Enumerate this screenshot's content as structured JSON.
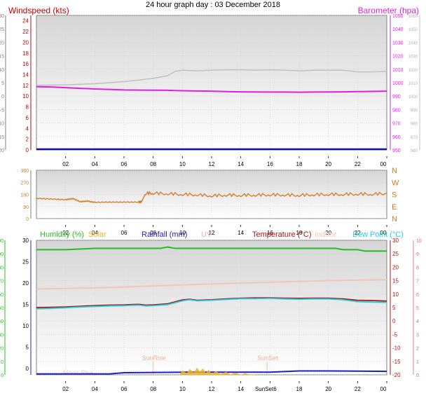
{
  "title": "24 hour graph day : 03 December 2018",
  "x_ticks": [
    "02",
    "04",
    "06",
    "08",
    "10",
    "12",
    "14",
    "16",
    "18",
    "20",
    "22",
    "00"
  ],
  "colors": {
    "wind_label": "#c00000",
    "baro": "#e020e0",
    "gust": "#c0c0c0",
    "dir": "#d07c20",
    "humidity": "#20c020",
    "solar": "#f0b020",
    "rain": "#2020c0",
    "uv": "#f0b0b0",
    "temp": "#b01010",
    "indoor": "#f0c8b8",
    "dew": "#20d0e0",
    "grid": "#d0d0d0",
    "bg_top": "#d8d8d8",
    "bg_bottom": "#ffffff"
  },
  "chart_data": [
    {
      "id": "wind-baro",
      "type": "line",
      "title": "",
      "left_label": "Windspeed (kts)",
      "right_label": "Barometer (hpa)",
      "left_ticks": [
        "24",
        "22",
        "20",
        "18",
        "16",
        "14",
        "12",
        "10",
        "8",
        "6",
        "4",
        "2",
        "0"
      ],
      "far_left_ticks": [
        "30",
        "25",
        "20",
        "15",
        "10",
        "5",
        "0",
        "-5",
        "-10",
        "-15",
        "-20"
      ],
      "right_ticks": [
        "1050",
        "1040",
        "1030",
        "1020",
        "1010",
        "1000",
        "990",
        "980",
        "970",
        "960",
        "950"
      ],
      "far_right_ticks": [
        "1060",
        "1050",
        "1040",
        "1030",
        "1020",
        "1010",
        "1000",
        "990",
        "980",
        "970",
        "960"
      ],
      "ylim_left": [
        0,
        25
      ],
      "ylim_baro": [
        950,
        1050
      ],
      "series": [
        {
          "key": "gust",
          "x": [
            0,
            2,
            4,
            5,
            6,
            7,
            8,
            9,
            9.5,
            10,
            11,
            12,
            13,
            14,
            15,
            16,
            17,
            18,
            19,
            20,
            21,
            22,
            23,
            24
          ],
          "y": [
            12,
            12.1,
            12.3,
            12.5,
            12.7,
            13,
            13.3,
            13.8,
            14.6,
            14.8,
            14.7,
            14.8,
            14.9,
            14.9,
            14.8,
            14.9,
            14.8,
            14.7,
            14.8,
            14.8,
            14.8,
            14.5,
            14.5,
            14.6
          ]
        },
        {
          "key": "baro",
          "x": [
            0,
            1,
            2,
            3,
            4,
            5,
            6,
            7,
            8,
            9,
            10,
            11,
            12,
            13,
            14,
            15,
            16,
            17,
            18,
            19,
            20,
            21,
            22,
            23,
            24
          ],
          "y": [
            997,
            996.8,
            996.3,
            995.8,
            995.3,
            995,
            994.6,
            994.5,
            994.4,
            994.3,
            994,
            993.8,
            993.7,
            993.4,
            993.2,
            993.1,
            993,
            993,
            992.9,
            993,
            993.1,
            993.2,
            993.4,
            993.5,
            993.7
          ]
        },
        {
          "key": "wind",
          "x": [
            0,
            24
          ],
          "y": [
            0,
            0
          ]
        }
      ]
    },
    {
      "id": "direction",
      "type": "line",
      "title": "",
      "left_ticks": [
        "360",
        "270",
        "180",
        "90",
        "0"
      ],
      "right_ticks": [
        "N",
        "W",
        "S",
        "E",
        "N"
      ],
      "ylim": [
        0,
        360
      ],
      "series": [
        {
          "key": "dir",
          "x": [
            0,
            1,
            2,
            2.5,
            3,
            3.5,
            4,
            5,
            6,
            7,
            7.2,
            7.5,
            8,
            9,
            10,
            11,
            12,
            13,
            14,
            15,
            16,
            17,
            18,
            19,
            20,
            21,
            22,
            23,
            24
          ],
          "y": [
            150,
            145,
            140,
            148,
            125,
            130,
            120,
            122,
            122,
            122,
            125,
            190,
            192,
            188,
            183,
            180,
            172,
            178,
            176,
            178,
            180,
            179,
            176,
            181,
            183,
            183,
            186,
            184,
            190
          ]
        }
      ]
    },
    {
      "id": "temp-hum",
      "type": "line",
      "title": "",
      "labels": {
        "humidity": "Humidity (%)",
        "solar": "Solar",
        "rain": "Rainfall (mm)",
        "uv": "UV",
        "temp": "Temperature (°C)",
        "indoor": "Indoor",
        "dew": "Dew Point (°C)"
      },
      "humidity_ticks": [
        "100",
        "90",
        "80",
        "70",
        "60",
        "50",
        "40",
        "30",
        "20",
        "10",
        "0"
      ],
      "rain_ticks": [
        "30",
        "25",
        "20",
        "15",
        "10",
        "5",
        "0"
      ],
      "temp_ticks": [
        "30",
        "25",
        "20",
        "15",
        "10",
        "5",
        "0",
        "-5",
        "-10",
        "-15",
        "-20"
      ],
      "uv_ticks": [
        "10",
        "9",
        "8",
        "7",
        "6",
        "5",
        "4",
        "3",
        "2",
        "1",
        "0"
      ],
      "ylim_temp": [
        -20,
        30
      ],
      "ylim_hum": [
        0,
        100
      ],
      "annotations": [
        "SunRise",
        "SunSet",
        "Moon Rise",
        "SunSet6"
      ],
      "series": [
        {
          "key": "humidity",
          "x": [
            0,
            2,
            4,
            6,
            8,
            8.5,
            9,
            9.5,
            10,
            12,
            14,
            16,
            18,
            20,
            20.5,
            21,
            22,
            22.5,
            23,
            24
          ],
          "y": [
            93,
            93,
            94,
            94,
            94,
            94,
            95,
            94,
            94,
            94,
            94,
            94,
            94,
            94,
            94,
            93,
            93,
            92,
            92,
            92
          ]
        },
        {
          "key": "indoor",
          "x": [
            0,
            2,
            4,
            6,
            8,
            10,
            12,
            14,
            16,
            18,
            20,
            22,
            24
          ],
          "y": [
            11.9,
            12.1,
            12.3,
            12.6,
            13,
            13.4,
            13.8,
            14.1,
            14.4,
            14.7,
            15,
            15.2,
            15.4
          ]
        },
        {
          "key": "temp",
          "x": [
            0,
            1,
            2,
            3,
            4,
            5,
            6,
            7,
            7.5,
            8,
            9,
            10,
            10.5,
            11,
            12,
            13,
            14,
            15,
            16,
            17,
            18,
            19,
            20,
            21,
            22,
            23,
            24
          ],
          "y": [
            5,
            5.1,
            5.2,
            5.5,
            5.7,
            5.9,
            6,
            6.2,
            5.9,
            6,
            6.4,
            7.8,
            8.1,
            7.7,
            7.9,
            8.2,
            8.5,
            8.6,
            8.6,
            8.5,
            8.4,
            8.5,
            8.5,
            8.2,
            7.7,
            7.6,
            7.4
          ]
        },
        {
          "key": "dew",
          "x": [
            0,
            1,
            2,
            3,
            4,
            5,
            6,
            7,
            7.5,
            8,
            9,
            10,
            10.5,
            11,
            12,
            13,
            14,
            15,
            16,
            17,
            18,
            19,
            20,
            21,
            22,
            23,
            24
          ],
          "y": [
            4.5,
            4.7,
            4.9,
            5.2,
            5.4,
            5.6,
            5.7,
            5.9,
            5.6,
            5.7,
            6.1,
            7.5,
            7.9,
            7.5,
            7.7,
            8,
            8.3,
            8.3,
            8.4,
            8.2,
            8.1,
            8.2,
            8.2,
            7.9,
            7.2,
            7,
            6.9
          ]
        },
        {
          "key": "rain",
          "x": [
            0,
            5,
            6,
            10,
            12,
            14,
            16,
            18,
            20,
            24
          ],
          "y": [
            0.2,
            0.2,
            0.5,
            0.6,
            0.6,
            0.6,
            0.6,
            0.9,
            0.9,
            0.8
          ]
        },
        {
          "key": "solar",
          "x": [
            9.8,
            10,
            10.3,
            10.5,
            10.8,
            11,
            11.2,
            11.4,
            11.6,
            11.8,
            12,
            12.3,
            12.6,
            13,
            13.3,
            13.6,
            14,
            14.3,
            14.6,
            15
          ],
          "y": [
            0,
            6,
            2,
            8,
            3,
            10,
            4,
            9,
            2,
            7,
            1,
            5,
            1,
            4,
            0,
            3,
            0,
            2,
            0,
            0
          ]
        }
      ]
    }
  ]
}
